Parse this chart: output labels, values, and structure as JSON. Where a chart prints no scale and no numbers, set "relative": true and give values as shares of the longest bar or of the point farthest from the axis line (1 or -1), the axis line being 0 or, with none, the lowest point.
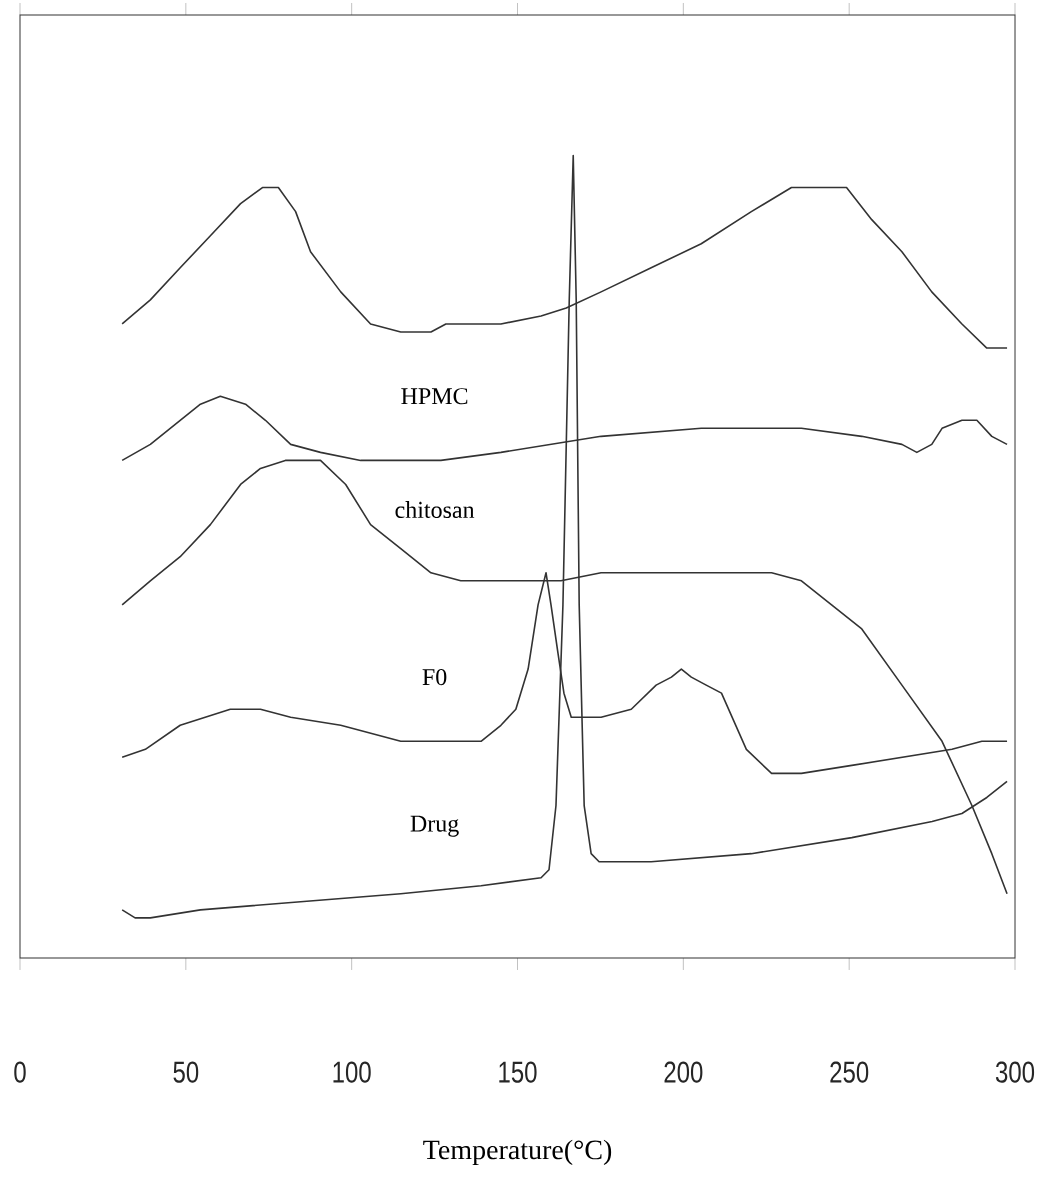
{
  "chart_data": {
    "type": "line",
    "relative": true,
    "xlabel": "Temperature(°C)",
    "xlim": [
      0,
      300
    ],
    "xticks": [
      0,
      50,
      100,
      150,
      200,
      250,
      300
    ],
    "series": [
      {
        "color": "#333333",
        "x": [
          30.8,
          39.3,
          48.3,
          57.4,
          66.5,
          73.1,
          77.9,
          83.1,
          87.6,
          96.7,
          105.7,
          114.8,
          123.9,
          128.4,
          132.9,
          145,
          157.1,
          164.7,
          175.2,
          190.3,
          205.4,
          220.5,
          232.6,
          249.2,
          256.8,
          265.9,
          274.9,
          284,
          291.5,
          297.6
        ],
        "values": [
          0.79,
          0.82,
          0.86,
          0.9,
          0.94,
          0.96,
          0.96,
          0.93,
          0.88,
          0.83,
          0.79,
          0.78,
          0.78,
          0.79,
          0.79,
          0.79,
          0.8,
          0.81,
          0.83,
          0.86,
          0.89,
          0.93,
          0.96,
          0.96,
          0.92,
          0.88,
          0.83,
          0.79,
          0.76,
          0.76
        ]
      },
      {
        "name": "HPMC",
        "color": "#333333",
        "x": [
          30.8,
          39.3,
          48.3,
          54.4,
          60.4,
          68,
          74,
          81.6,
          90.6,
          102.7,
          126.9,
          145,
          160.1,
          175.2,
          205.4,
          223.6,
          235.6,
          253.8,
          265.9,
          270.4,
          274.9,
          278,
          284,
          288.5,
          293,
          297.6
        ],
        "values": [
          0.62,
          0.64,
          0.67,
          0.69,
          0.7,
          0.69,
          0.67,
          0.64,
          0.63,
          0.62,
          0.62,
          0.63,
          0.64,
          0.65,
          0.66,
          0.66,
          0.66,
          0.65,
          0.64,
          0.63,
          0.64,
          0.66,
          0.67,
          0.67,
          0.65,
          0.64
        ]
      },
      {
        "name": "chitosan",
        "color": "#333333",
        "x": [
          30.8,
          39.3,
          48.3,
          57.4,
          66.5,
          72.5,
          80,
          90.6,
          98.2,
          105.7,
          114.8,
          123.9,
          132.9,
          145,
          163.1,
          175.2,
          205.4,
          226.6,
          235.6,
          244.7,
          253.8,
          265.9,
          278,
          287,
          293,
          297.6
        ],
        "values": [
          0.44,
          0.47,
          0.5,
          0.54,
          0.59,
          0.61,
          0.62,
          0.62,
          0.59,
          0.54,
          0.51,
          0.48,
          0.47,
          0.47,
          0.47,
          0.48,
          0.48,
          0.48,
          0.47,
          0.44,
          0.41,
          0.34,
          0.27,
          0.19,
          0.13,
          0.08
        ]
      },
      {
        "name": "F0",
        "color": "#333333",
        "x": [
          30.8,
          37.8,
          48.3,
          63.4,
          72.5,
          81.6,
          96.7,
          114.8,
          126.9,
          139,
          145,
          149.5,
          153.2,
          156.2,
          158.6,
          160.1,
          162.2,
          164,
          166.2,
          175.2,
          184.3,
          191.8,
          196.4,
          199.4,
          202.4,
          206.9,
          211.5,
          219,
          226.6,
          235.6,
          250.8,
          265.9,
          281,
          290,
          297.6
        ],
        "values": [
          0.25,
          0.26,
          0.29,
          0.31,
          0.31,
          0.3,
          0.29,
          0.27,
          0.27,
          0.27,
          0.29,
          0.31,
          0.36,
          0.44,
          0.48,
          0.44,
          0.38,
          0.33,
          0.3,
          0.3,
          0.31,
          0.34,
          0.35,
          0.36,
          0.35,
          0.34,
          0.33,
          0.26,
          0.23,
          0.23,
          0.24,
          0.25,
          0.26,
          0.27,
          0.27
        ]
      },
      {
        "name": "Drug",
        "color": "#333333",
        "x": [
          30.8,
          34.7,
          39.3,
          54.4,
          84.6,
          114.8,
          139,
          157.1,
          159.5,
          161.6,
          163.7,
          165.6,
          166.8,
          167.7,
          168.6,
          170.1,
          172.2,
          174.6,
          190.3,
          220.5,
          250.8,
          275,
          284,
          291.5,
          297.6
        ],
        "values": [
          0.06,
          0.05,
          0.05,
          0.06,
          0.07,
          0.08,
          0.09,
          0.1,
          0.11,
          0.19,
          0.44,
          0.82,
          1,
          0.82,
          0.44,
          0.19,
          0.13,
          0.12,
          0.12,
          0.13,
          0.15,
          0.17,
          0.18,
          0.2,
          0.22
        ]
      }
    ]
  }
}
